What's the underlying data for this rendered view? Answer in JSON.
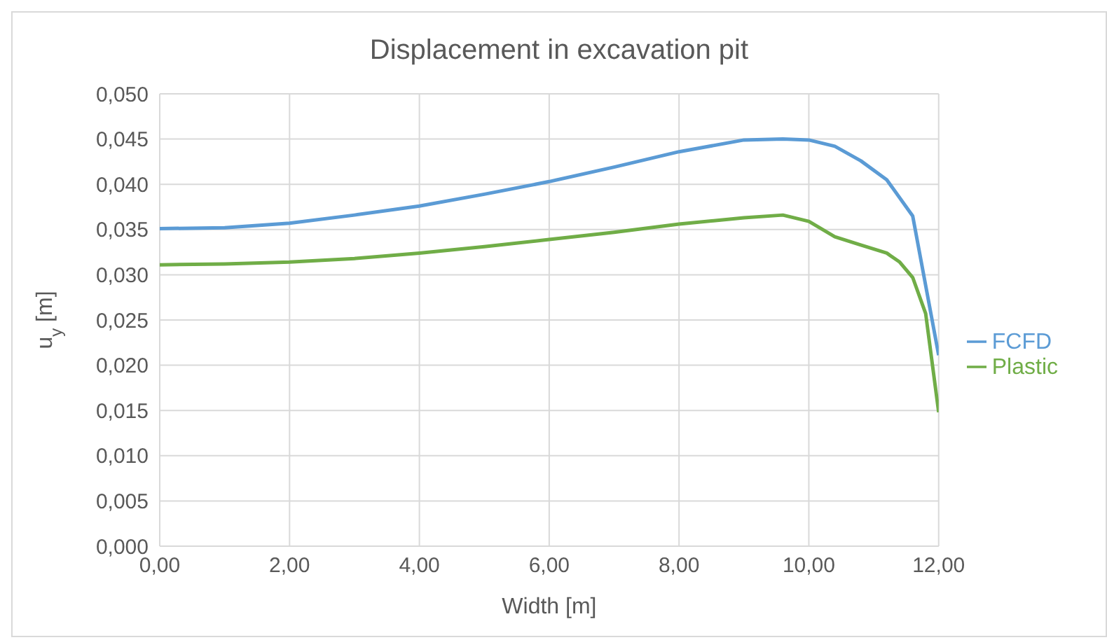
{
  "chart_data": {
    "type": "line",
    "title": "Displacement in excavation pit",
    "xlabel": "Width [m]",
    "ylabel": "u$_{y}$ [m]",
    "series": [
      {
        "name": "Plastic",
        "color": "#70ad47",
        "x": [
          0,
          1,
          2,
          3,
          4,
          5,
          6,
          7,
          8,
          9,
          9.6,
          10,
          10.4,
          10.8,
          11.2,
          11.4,
          11.6,
          11.8,
          12
        ],
        "values": [
          0.0311,
          0.0312,
          0.0314,
          0.0318,
          0.0324,
          0.0331,
          0.0339,
          0.0347,
          0.0356,
          0.0363,
          0.0366,
          0.0359,
          0.0342,
          0.0333,
          0.0324,
          0.0314,
          0.0297,
          0.0257,
          0.0148
        ]
      },
      {
        "name": "FCFD",
        "color": "#5b9bd5",
        "x": [
          0,
          1,
          2,
          3,
          4,
          5,
          6,
          7,
          8,
          9,
          9.6,
          10,
          10.4,
          10.8,
          11.2,
          11.6,
          12
        ],
        "values": [
          0.0351,
          0.0352,
          0.0357,
          0.0366,
          0.0376,
          0.0389,
          0.0403,
          0.0419,
          0.0436,
          0.0449,
          0.045,
          0.0449,
          0.0442,
          0.0426,
          0.0405,
          0.0365,
          0.0211
        ]
      }
    ],
    "xlim": [
      0,
      12
    ],
    "xticks": [
      {
        "value": 0,
        "label": "0,00"
      },
      {
        "value": 2,
        "label": "2,00"
      },
      {
        "value": 4,
        "label": "4,00"
      },
      {
        "value": 6,
        "label": "6,00"
      },
      {
        "value": 8,
        "label": "8,00"
      },
      {
        "value": 10,
        "label": "10,00"
      },
      {
        "value": 12,
        "label": "12,00"
      }
    ],
    "ylim": [
      0,
      0.05
    ],
    "yticks": [
      {
        "value": 0,
        "label": "0,000"
      },
      {
        "value": 0.005,
        "label": "0,005"
      },
      {
        "value": 0.01,
        "label": "0,010"
      },
      {
        "value": 0.015,
        "label": "0,015"
      },
      {
        "value": 0.02,
        "label": "0,020"
      },
      {
        "value": 0.025,
        "label": "0,025"
      },
      {
        "value": 0.03,
        "label": "0,030"
      },
      {
        "value": 0.035,
        "label": "0,035"
      },
      {
        "value": 0.04,
        "label": "0,040"
      },
      {
        "value": 0.045,
        "label": "0,045"
      },
      {
        "value": 0.05,
        "label": "0,050"
      }
    ],
    "grid": true,
    "legend": "right",
    "marker": "none",
    "line_style": "solid"
  }
}
